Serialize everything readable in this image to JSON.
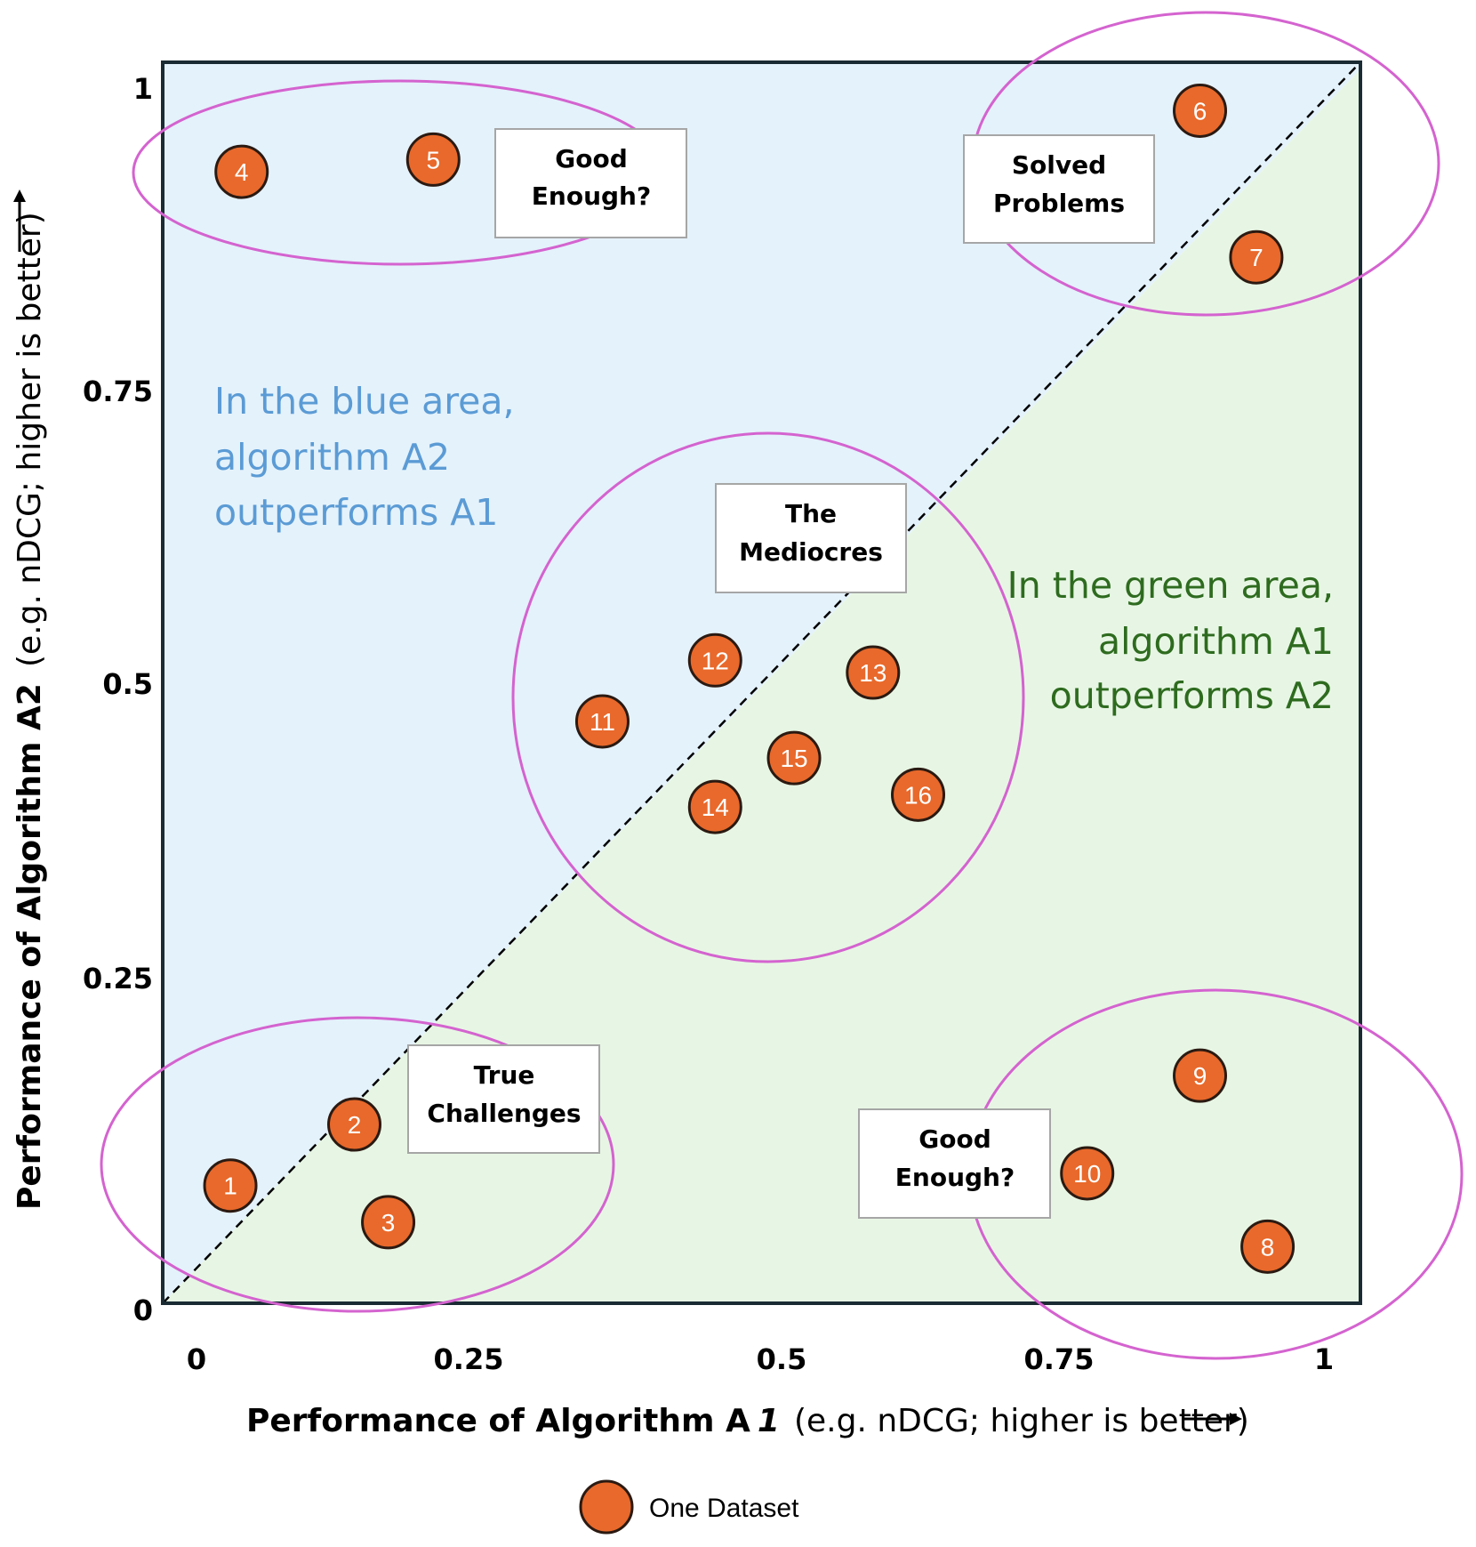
{
  "chart_data": {
    "type": "scatter",
    "x_ticks": [
      "0",
      "0.25",
      "0.5",
      "0.75",
      "1"
    ],
    "y_ticks": [
      "0",
      "0.25",
      "0.5",
      "0.75",
      "1"
    ],
    "xlim": [
      0,
      1
    ],
    "ylim": [
      0,
      1
    ],
    "xlabel_bold": "Performance of Algorithm A",
    "xlabel_sub": "1",
    "xlabel_note": "(e.g. nDCG; higher is better)",
    "ylabel_bold": "Performance of Algorithm A2",
    "ylabel_note": "(e.g. nDCG; higher is better)",
    "diagonal": "dashed y = x",
    "region_colors": {
      "upper": "#e4f2fb",
      "lower": "#e7f6e4"
    },
    "points": [
      {
        "label": "1",
        "x": 0.03,
        "y": 0.1
      },
      {
        "label": "2",
        "x": 0.14,
        "y": 0.15
      },
      {
        "label": "3",
        "x": 0.17,
        "y": 0.07
      },
      {
        "label": "4",
        "x": 0.04,
        "y": 0.93
      },
      {
        "label": "5",
        "x": 0.21,
        "y": 0.94
      },
      {
        "label": "6",
        "x": 0.89,
        "y": 0.98
      },
      {
        "label": "7",
        "x": 0.94,
        "y": 0.86
      },
      {
        "label": "8",
        "x": 0.95,
        "y": 0.05
      },
      {
        "label": "9",
        "x": 0.89,
        "y": 0.19
      },
      {
        "label": "10",
        "x": 0.79,
        "y": 0.11
      },
      {
        "label": "11",
        "x": 0.36,
        "y": 0.48
      },
      {
        "label": "12",
        "x": 0.46,
        "y": 0.53
      },
      {
        "label": "13",
        "x": 0.6,
        "y": 0.52
      },
      {
        "label": "14",
        "x": 0.46,
        "y": 0.41
      },
      {
        "label": "15",
        "x": 0.53,
        "y": 0.45
      },
      {
        "label": "16",
        "x": 0.64,
        "y": 0.42
      }
    ],
    "ellipse_color": "#d463cf",
    "point_color": "#e8692b"
  },
  "labels": {
    "good_enough_top": [
      "Good",
      "Enough?"
    ],
    "solved": [
      "Solved",
      "Problems"
    ],
    "mediocres": [
      "The",
      "Mediocres"
    ],
    "true_challenges": [
      "True",
      "Challenges"
    ],
    "good_enough_bottom": [
      "Good",
      "Enough?"
    ]
  },
  "blue_note": [
    "In the blue area,",
    "algorithm A2",
    "outperforms A1"
  ],
  "green_note": [
    "In the green area,",
    "algorithm A1",
    "outperforms A2"
  ],
  "legend": {
    "label": "One Dataset"
  }
}
